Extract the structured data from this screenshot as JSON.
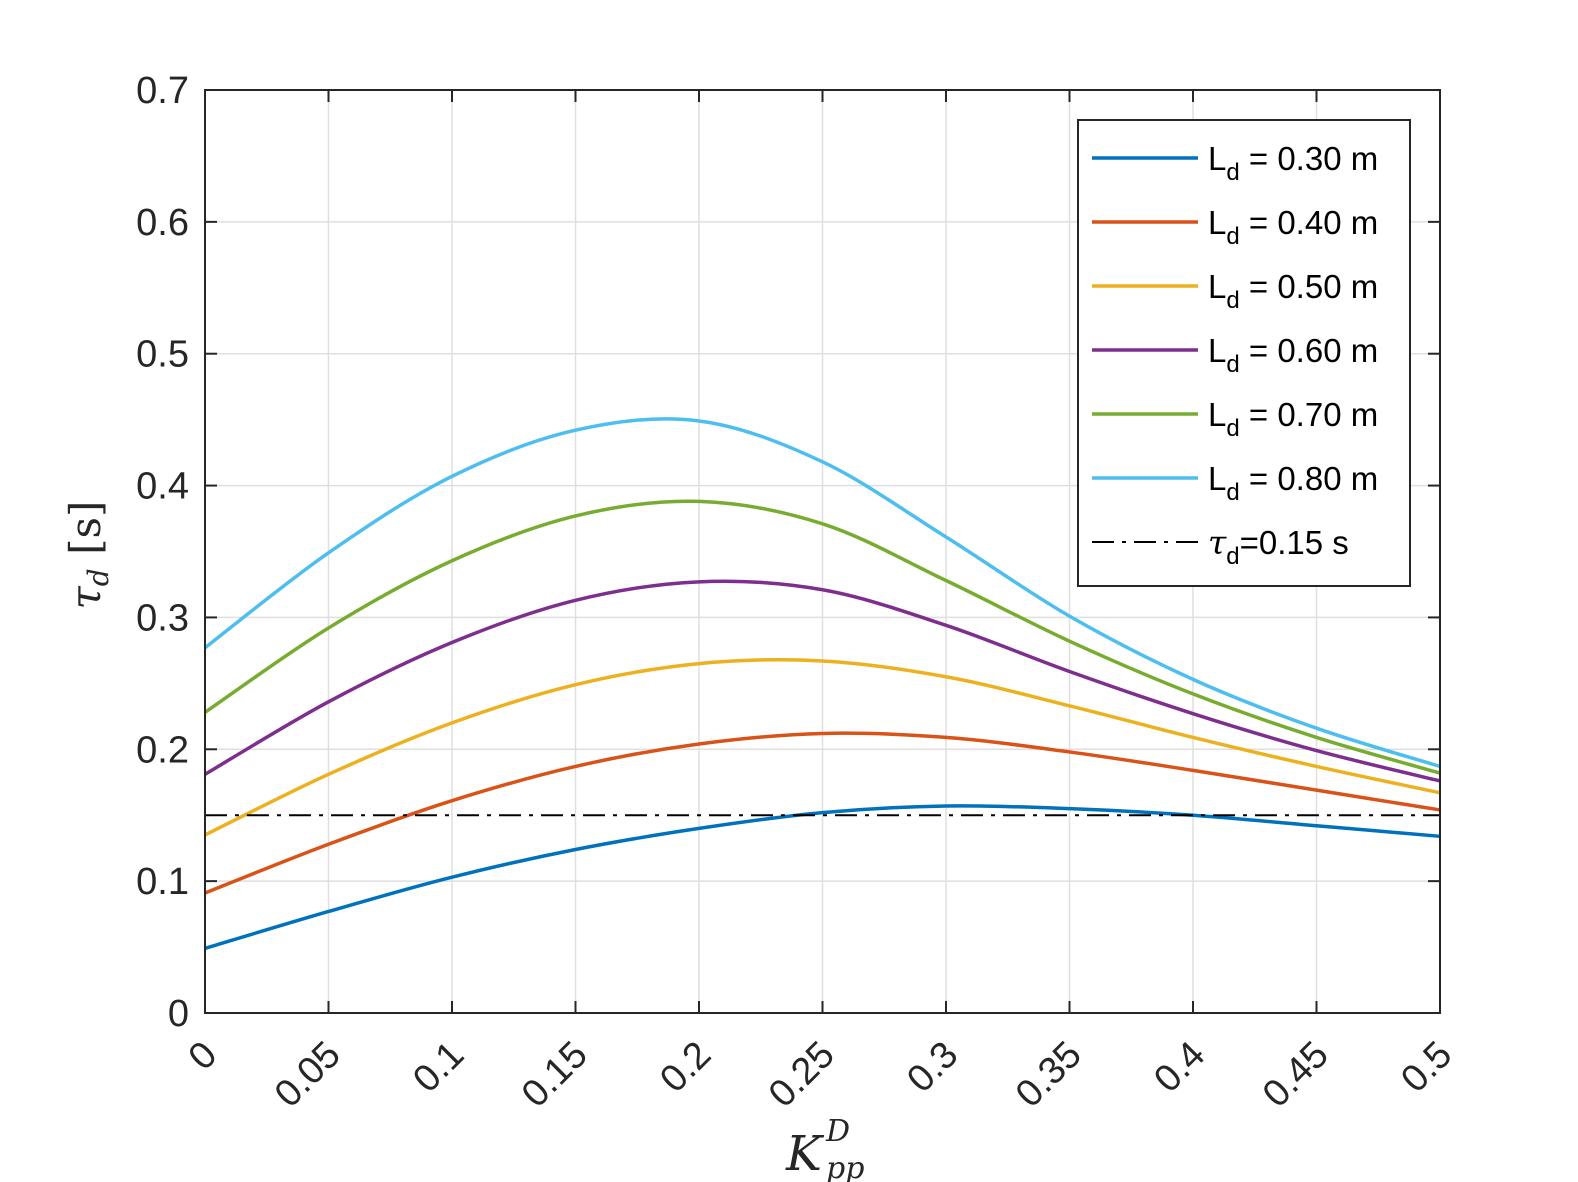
{
  "chart_data": {
    "type": "line",
    "title": "",
    "xlabel": {
      "base": "K",
      "sup": "D",
      "sub": "pp"
    },
    "ylabel": {
      "base": "τ",
      "sub": "d",
      "unit": "[s]"
    },
    "xlim": [
      0,
      0.5
    ],
    "ylim": [
      0,
      0.7
    ],
    "x_ticks": [
      "0",
      "0.05",
      "0.1",
      "0.15",
      "0.2",
      "0.25",
      "0.3",
      "0.35",
      "0.4",
      "0.45",
      "0.5"
    ],
    "y_ticks": [
      "0",
      "0.1",
      "0.2",
      "0.3",
      "0.4",
      "0.5",
      "0.6",
      "0.7"
    ],
    "grid": true,
    "legend_position": "top-right",
    "x": [
      0,
      0.05,
      0.1,
      0.15,
      0.2,
      0.25,
      0.3,
      0.35,
      0.4,
      0.45,
      0.5
    ],
    "series": [
      {
        "name": "L",
        "name_sub": "d",
        "name_suffix": " = 0.30 m",
        "color": "#0072BD",
        "style": "solid",
        "values": [
          0.049,
          0.077,
          0.103,
          0.124,
          0.14,
          0.152,
          0.157,
          0.155,
          0.15,
          0.142,
          0.134
        ]
      },
      {
        "name": "L",
        "name_sub": "d",
        "name_suffix": " = 0.40 m",
        "color": "#D95319",
        "style": "solid",
        "values": [
          0.091,
          0.128,
          0.161,
          0.187,
          0.204,
          0.212,
          0.209,
          0.198,
          0.184,
          0.169,
          0.154
        ]
      },
      {
        "name": "L",
        "name_sub": "d",
        "name_suffix": " = 0.50 m",
        "color": "#EDB120",
        "style": "solid",
        "values": [
          0.135,
          0.181,
          0.22,
          0.249,
          0.265,
          0.267,
          0.255,
          0.233,
          0.209,
          0.187,
          0.167
        ]
      },
      {
        "name": "L",
        "name_sub": "d",
        "name_suffix": " = 0.60 m",
        "color": "#7E2F8E",
        "style": "solid",
        "values": [
          0.181,
          0.236,
          0.281,
          0.313,
          0.327,
          0.321,
          0.294,
          0.259,
          0.227,
          0.199,
          0.176
        ]
      },
      {
        "name": "L",
        "name_sub": "d",
        "name_suffix": " = 0.70 m",
        "color": "#77AC30",
        "style": "solid",
        "values": [
          0.228,
          0.292,
          0.343,
          0.377,
          0.388,
          0.371,
          0.328,
          0.282,
          0.242,
          0.209,
          0.182
        ]
      },
      {
        "name": "L",
        "name_sub": "d",
        "name_suffix": " = 0.80 m",
        "color": "#4DBEEE",
        "style": "solid",
        "values": [
          0.277,
          0.349,
          0.407,
          0.442,
          0.449,
          0.418,
          0.361,
          0.301,
          0.253,
          0.216,
          0.187
        ]
      },
      {
        "name": "τ",
        "name_sub": "d",
        "name_suffix": "=0.15 s",
        "color": "#000000",
        "style": "dash-dot",
        "values": [
          0.15,
          0.15,
          0.15,
          0.15,
          0.15,
          0.15,
          0.15,
          0.15,
          0.15,
          0.15,
          0.15
        ]
      }
    ]
  }
}
